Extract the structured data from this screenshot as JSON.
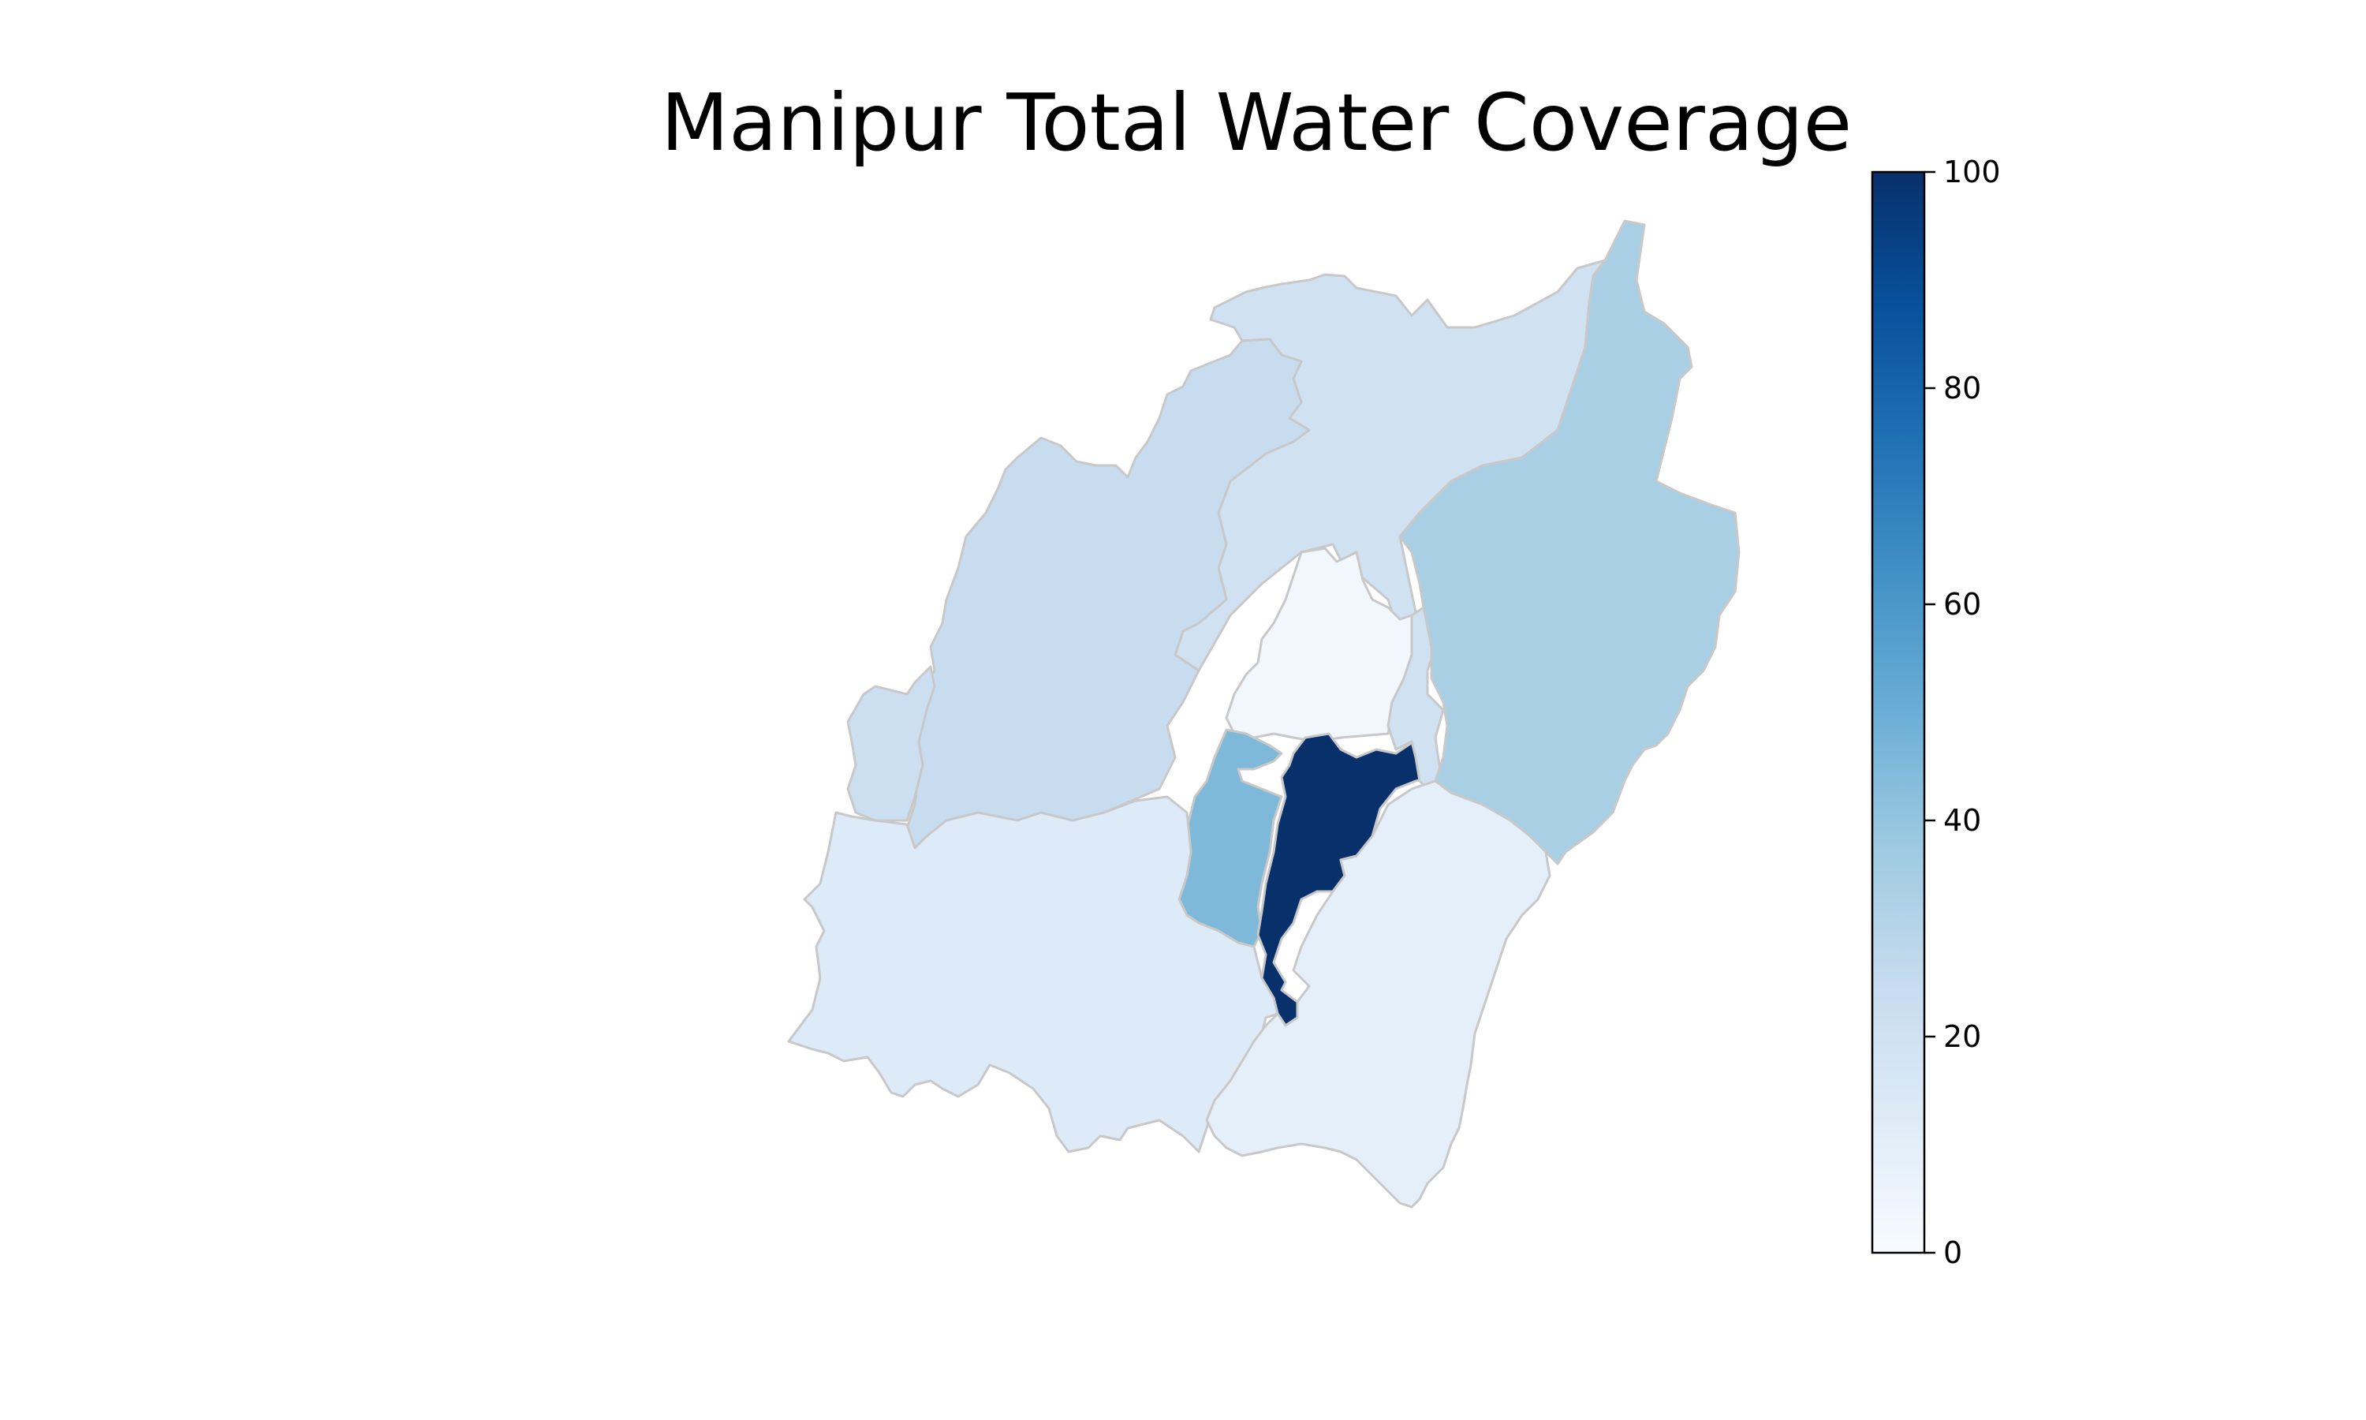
{
  "title": "Manipur Total Water Coverage",
  "map": {
    "colormap": "Blues",
    "value_range": [
      0,
      100
    ],
    "border_color": "#c8c8c8",
    "regions": [
      {
        "id": "north-central",
        "value": 20
      },
      {
        "id": "west-central",
        "value": 24
      },
      {
        "id": "east",
        "value": 34
      },
      {
        "id": "south-west",
        "value": 13
      },
      {
        "id": "south-east",
        "value": 9
      },
      {
        "id": "central-north",
        "value": 3
      },
      {
        "id": "central-west",
        "value": 45
      },
      {
        "id": "central-valley",
        "value": 100
      },
      {
        "id": "east-strip",
        "value": 20
      },
      {
        "id": "west-edge",
        "value": 22
      }
    ]
  },
  "colorbar": {
    "ticks": [
      {
        "value": 0,
        "label": "0"
      },
      {
        "value": 20,
        "label": "20"
      },
      {
        "value": 40,
        "label": "40"
      },
      {
        "value": 60,
        "label": "60"
      },
      {
        "value": 80,
        "label": "80"
      },
      {
        "value": 100,
        "label": "100"
      }
    ],
    "stops": [
      "#f7fbff",
      "#deebf7",
      "#c6dbef",
      "#9ecae1",
      "#6baed6",
      "#4292c6",
      "#2171b5",
      "#08519c",
      "#08306b"
    ]
  }
}
